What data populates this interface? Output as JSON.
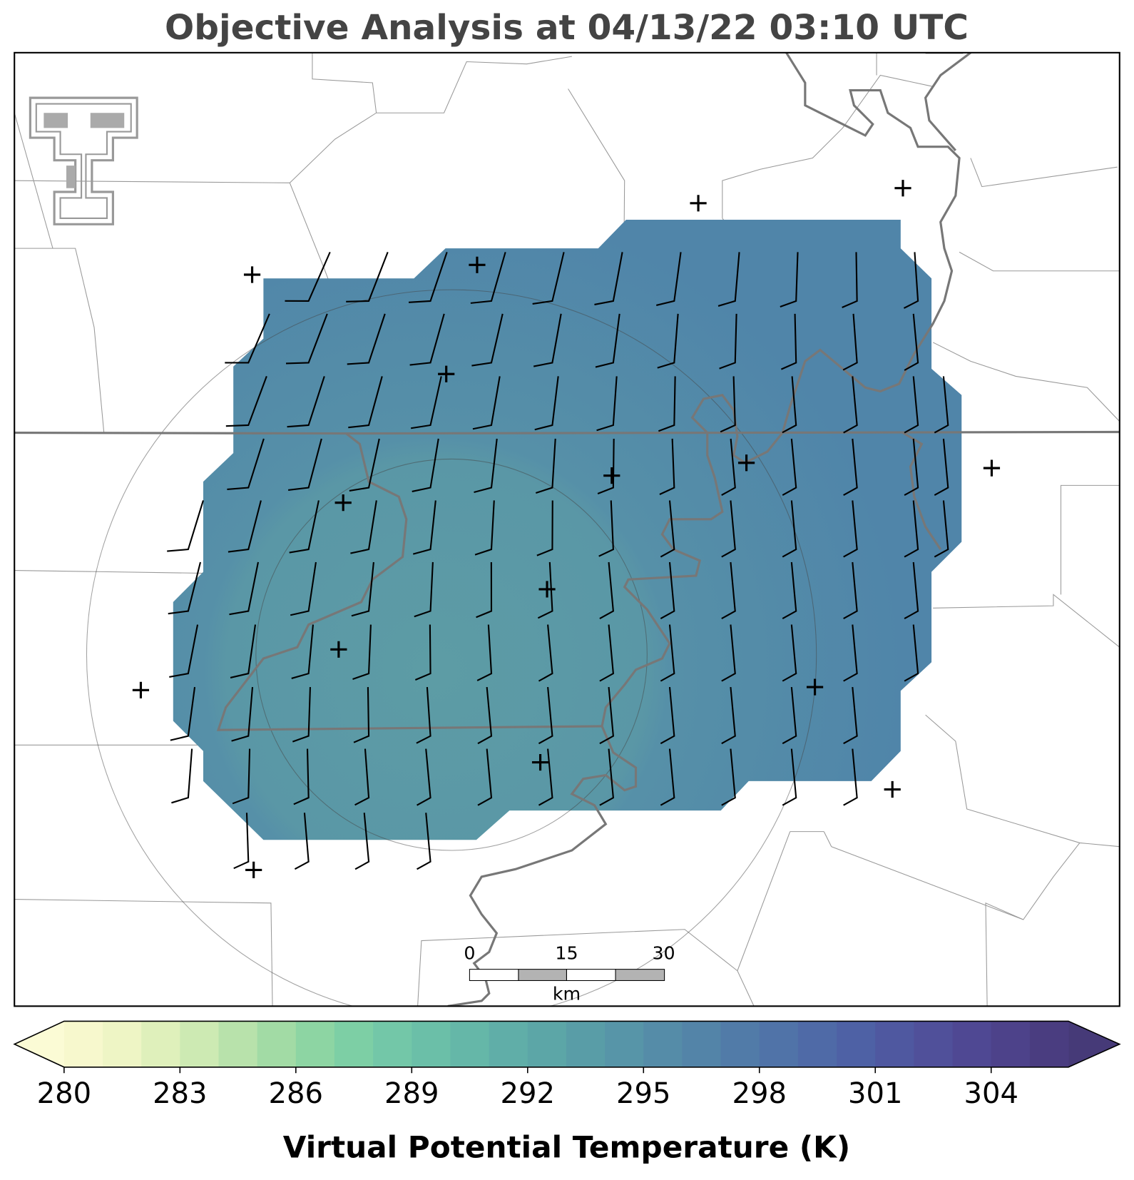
{
  "title": "Objective Analysis at 04/13/22 03:10 UTC",
  "scale_bar": {
    "ticks": [
      0,
      15,
      30
    ],
    "unit": "km"
  },
  "colorbar": {
    "label": "Virtual Potential Temperature (K)",
    "lim": [
      280,
      306
    ],
    "ticks": [
      280,
      283,
      286,
      289,
      292,
      295,
      298,
      301,
      304
    ],
    "colors": [
      "#f7f8cd",
      "#eef5c5",
      "#dff0bb",
      "#cdeab3",
      "#b8e2ab",
      "#a2dba5",
      "#8dd5a3",
      "#7dcfa5",
      "#73c7a8",
      "#6bbfa8",
      "#65b7a8",
      "#60aea8",
      "#5ca6a7",
      "#599da7",
      "#5795a8",
      "#558ca8",
      "#5384a8",
      "#517ba8",
      "#5073a8",
      "#4f6aa7",
      "#4e61a5",
      "#4f58a0",
      "#50509a",
      "#4f4893",
      "#4d428a",
      "#4a3d80"
    ],
    "under_color": "#fbfbd5",
    "over_color": "#463a78"
  }
}
